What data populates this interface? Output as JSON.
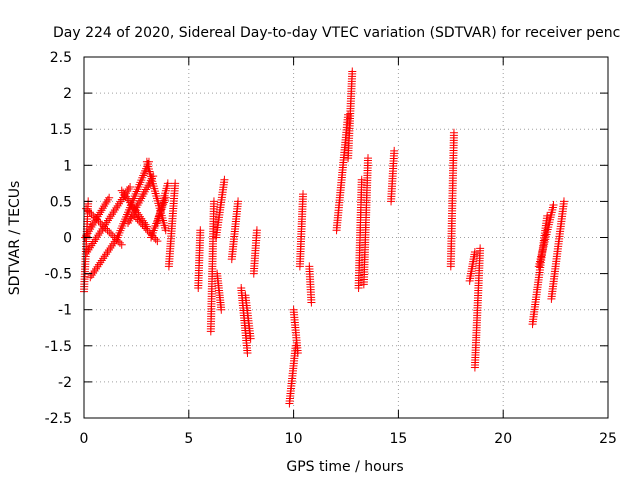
{
  "chart_data": {
    "type": "scatter",
    "title": "Day 224 of 2020, Sidereal Day-to-day VTEC variation (SDTVAR) for receiver penc",
    "xlabel": "GPS time / hours",
    "ylabel": "SDTVAR / TECUs",
    "xlim": [
      0,
      25
    ],
    "ylim": [
      -2.5,
      2.5
    ],
    "x_ticks": [
      0,
      5,
      10,
      15,
      20,
      25
    ],
    "x_tick_labels": [
      "0",
      "5",
      "10",
      "15",
      "20",
      "25"
    ],
    "y_ticks": [
      -2.5,
      -2,
      -1.5,
      -1,
      -0.5,
      0,
      0.5,
      1,
      1.5,
      2,
      2.5
    ],
    "y_tick_labels": [
      "-2.5",
      "-2",
      "-1.5",
      "-1",
      "-0.5",
      "0",
      "0.5",
      "1",
      "1.5",
      "2",
      "2.5"
    ],
    "grid": true,
    "marker": "plus",
    "color": "#ff0000",
    "series": [
      {
        "name": "SDTVAR",
        "segments": [
          {
            "x": [
              0.0,
              0.2
            ],
            "y": [
              -0.75,
              0.5
            ]
          },
          {
            "x": [
              0.05,
              1.2
            ],
            "y": [
              0.0,
              0.55
            ]
          },
          {
            "x": [
              0.1,
              1.8
            ],
            "y": [
              0.4,
              -0.1
            ]
          },
          {
            "x": [
              0.15,
              2.2
            ],
            "y": [
              -0.2,
              0.7
            ]
          },
          {
            "x": [
              0.3,
              1.6
            ],
            "y": [
              -0.55,
              0.0
            ]
          },
          {
            "x": [
              1.6,
              3.1
            ],
            "y": [
              0.0,
              1.05
            ]
          },
          {
            "x": [
              1.8,
              3.0
            ],
            "y": [
              0.65,
              0.15
            ]
          },
          {
            "x": [
              2.1,
              3.3
            ],
            "y": [
              0.2,
              0.85
            ]
          },
          {
            "x": [
              2.4,
              3.5
            ],
            "y": [
              0.3,
              -0.05
            ]
          },
          {
            "x": [
              3.0,
              3.9
            ],
            "y": [
              1.05,
              0.1
            ]
          },
          {
            "x": [
              3.2,
              3.9
            ],
            "y": [
              0.0,
              0.55
            ]
          },
          {
            "x": [
              3.5,
              4.0
            ],
            "y": [
              0.2,
              0.75
            ]
          },
          {
            "x": [
              4.05,
              4.35
            ],
            "y": [
              -0.4,
              0.75
            ]
          },
          {
            "x": [
              5.45,
              5.55
            ],
            "y": [
              -0.7,
              0.1
            ]
          },
          {
            "x": [
              6.05,
              6.2
            ],
            "y": [
              -1.3,
              0.5
            ]
          },
          {
            "x": [
              6.3,
              6.7
            ],
            "y": [
              0.0,
              0.8
            ]
          },
          {
            "x": [
              6.35,
              6.55
            ],
            "y": [
              -0.5,
              -1.0
            ]
          },
          {
            "x": [
              7.05,
              7.35
            ],
            "y": [
              -0.3,
              0.5
            ]
          },
          {
            "x": [
              7.5,
              7.8
            ],
            "y": [
              -0.7,
              -1.6
            ]
          },
          {
            "x": [
              7.7,
              7.95
            ],
            "y": [
              -0.8,
              -1.4
            ]
          },
          {
            "x": [
              8.1,
              8.25
            ],
            "y": [
              -0.5,
              0.1
            ]
          },
          {
            "x": [
              9.8,
              10.1
            ],
            "y": [
              -2.3,
              -1.5
            ]
          },
          {
            "x": [
              10.0,
              10.2
            ],
            "y": [
              -1.0,
              -1.6
            ]
          },
          {
            "x": [
              10.3,
              10.45
            ],
            "y": [
              -0.4,
              0.6
            ]
          },
          {
            "x": [
              10.75,
              10.85
            ],
            "y": [
              -0.4,
              -0.9
            ]
          },
          {
            "x": [
              12.05,
              12.6
            ],
            "y": [
              0.1,
              1.7
            ]
          },
          {
            "x": [
              12.6,
              12.8
            ],
            "y": [
              1.1,
              2.3
            ]
          },
          {
            "x": [
              13.1,
              13.25
            ],
            "y": [
              -0.7,
              0.8
            ]
          },
          {
            "x": [
              13.35,
              13.55
            ],
            "y": [
              -0.65,
              1.1
            ]
          },
          {
            "x": [
              14.65,
              14.8
            ],
            "y": [
              0.5,
              1.2
            ]
          },
          {
            "x": [
              17.5,
              17.65
            ],
            "y": [
              -0.4,
              1.45
            ]
          },
          {
            "x": [
              18.4,
              18.65
            ],
            "y": [
              -0.6,
              -0.2
            ]
          },
          {
            "x": [
              18.65,
              18.9
            ],
            "y": [
              -1.8,
              -0.15
            ]
          },
          {
            "x": [
              21.4,
              22.1
            ],
            "y": [
              -1.2,
              0.3
            ]
          },
          {
            "x": [
              21.7,
              22.4
            ],
            "y": [
              -0.4,
              0.45
            ]
          },
          {
            "x": [
              22.3,
              22.9
            ],
            "y": [
              -0.85,
              0.5
            ]
          }
        ]
      }
    ]
  }
}
